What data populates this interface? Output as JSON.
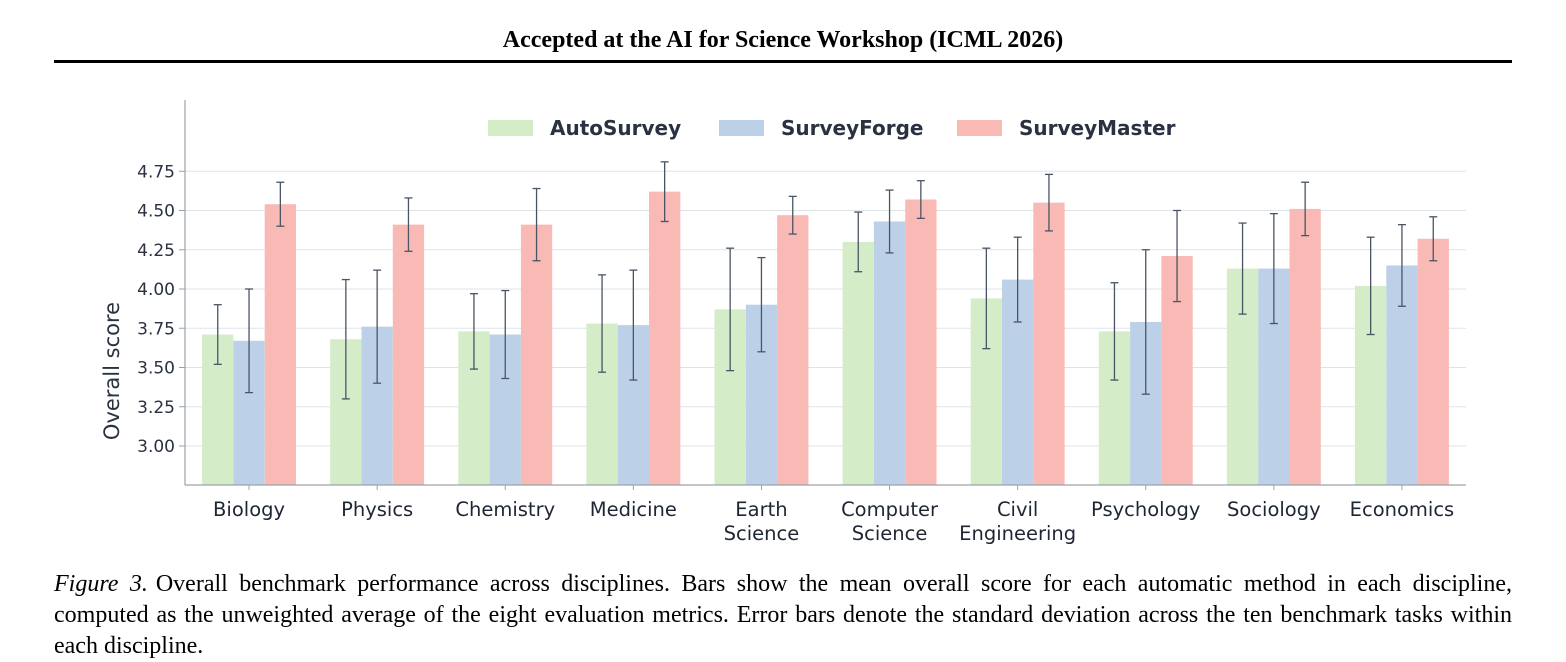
{
  "header": {
    "text": "Accepted at the AI for Science Workshop (ICML 2026)"
  },
  "caption": {
    "label": "Figure 3.",
    "text": "Overall benchmark performance across disciplines. Bars show the mean overall score for each automatic method in each discipline, computed as the unweighted average of the eight evaluation metrics. Error bars denote the standard deviation across the ten benchmark tasks within each discipline."
  },
  "chart_data": {
    "type": "bar",
    "ylabel": "Overall score",
    "xlabel": "",
    "ylim": [
      2.75,
      4.95
    ],
    "yticks": [
      "3.00",
      "3.25",
      "3.50",
      "3.75",
      "4.00",
      "4.25",
      "4.50",
      "4.75"
    ],
    "grid": true,
    "legend_position": "top-center",
    "categories": [
      [
        "Biology"
      ],
      [
        "Physics"
      ],
      [
        "Chemistry"
      ],
      [
        "Medicine"
      ],
      [
        "Earth",
        "Science"
      ],
      [
        "Computer",
        "Science"
      ],
      [
        "Civil",
        "Engineering"
      ],
      [
        "Psychology"
      ],
      [
        "Sociology"
      ],
      [
        "Economics"
      ]
    ],
    "series": [
      {
        "name": "AutoSurvey",
        "color": "#d5ecc9",
        "values": [
          3.71,
          3.68,
          3.73,
          3.78,
          3.87,
          4.3,
          3.94,
          3.73,
          4.13,
          4.02
        ],
        "errors": [
          0.19,
          0.38,
          0.24,
          0.31,
          0.39,
          0.19,
          0.32,
          0.31,
          0.29,
          0.31
        ]
      },
      {
        "name": "SurveyForge",
        "color": "#bcd1e8",
        "values": [
          3.67,
          3.76,
          3.71,
          3.77,
          3.9,
          4.43,
          4.06,
          3.79,
          4.13,
          4.15
        ],
        "errors": [
          0.33,
          0.36,
          0.28,
          0.35,
          0.3,
          0.2,
          0.27,
          0.46,
          0.35,
          0.26
        ]
      },
      {
        "name": "SurveyMaster",
        "color": "#f9b9b4",
        "values": [
          4.54,
          4.41,
          4.41,
          4.62,
          4.47,
          4.57,
          4.55,
          4.21,
          4.51,
          4.32
        ],
        "errors": [
          0.14,
          0.17,
          0.23,
          0.19,
          0.12,
          0.12,
          0.18,
          0.29,
          0.17,
          0.14
        ]
      }
    ]
  }
}
